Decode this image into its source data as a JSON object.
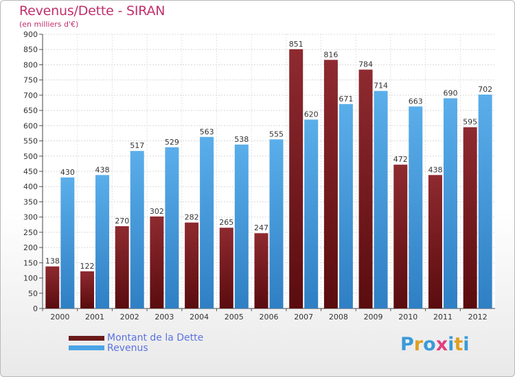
{
  "title": "Revenus/Dette - SIRAN",
  "subtitle": "(en milliers d'€)",
  "brand": {
    "letters": [
      "P",
      "r",
      "o",
      "x",
      "i",
      "t",
      "i"
    ],
    "colors": [
      "#3a9ad9",
      "#e0a020",
      "#3a9ad9",
      "#e04080",
      "#3a9ad9",
      "#e0a020",
      "#3a9ad9"
    ]
  },
  "legend": [
    {
      "label": "Montant de la Dette",
      "color": "#6b1a1a"
    },
    {
      "label": "Revenus",
      "color": "#4aa3e6"
    }
  ],
  "chart_data": {
    "type": "bar",
    "categories": [
      "2000",
      "2001",
      "2002",
      "2003",
      "2004",
      "2005",
      "2006",
      "2007",
      "2008",
      "2009",
      "2010",
      "2011",
      "2012"
    ],
    "series": [
      {
        "name": "Montant de la Dette",
        "color": "#7a1e22",
        "values": [
          138,
          122,
          270,
          302,
          282,
          265,
          247,
          851,
          816,
          784,
          472,
          438,
          595
        ]
      },
      {
        "name": "Revenus",
        "color": "#4aa3e6",
        "values": [
          430,
          438,
          517,
          529,
          563,
          538,
          555,
          620,
          671,
          714,
          663,
          690,
          702
        ]
      }
    ],
    "ylim": [
      0,
      900
    ],
    "yticks": [
      "0",
      "50",
      "100",
      "150",
      "200",
      "250",
      "300",
      "350",
      "400",
      "450",
      "500",
      "550",
      "600",
      "650",
      "700",
      "750",
      "800",
      "850",
      "900"
    ],
    "grid": true
  }
}
